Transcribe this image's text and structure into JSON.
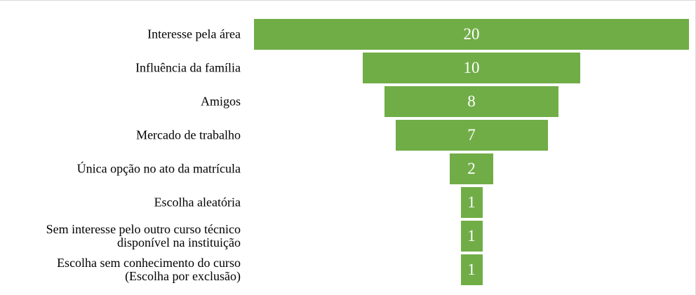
{
  "chart_data": {
    "type": "funnel",
    "categories": [
      "Interesse pela área",
      "Influência da família",
      "Amigos",
      "Mercado de trabalho",
      "Única opção no ato da matrícula",
      "Escolha aleatória",
      "Sem interesse pelo outro curso técnico disponível na instituição",
      "Escolha sem conhecimento do curso (Escolha por exclusão)"
    ],
    "values": [
      20,
      10,
      8,
      7,
      2,
      1,
      1,
      1
    ],
    "color": "#70ad47"
  }
}
